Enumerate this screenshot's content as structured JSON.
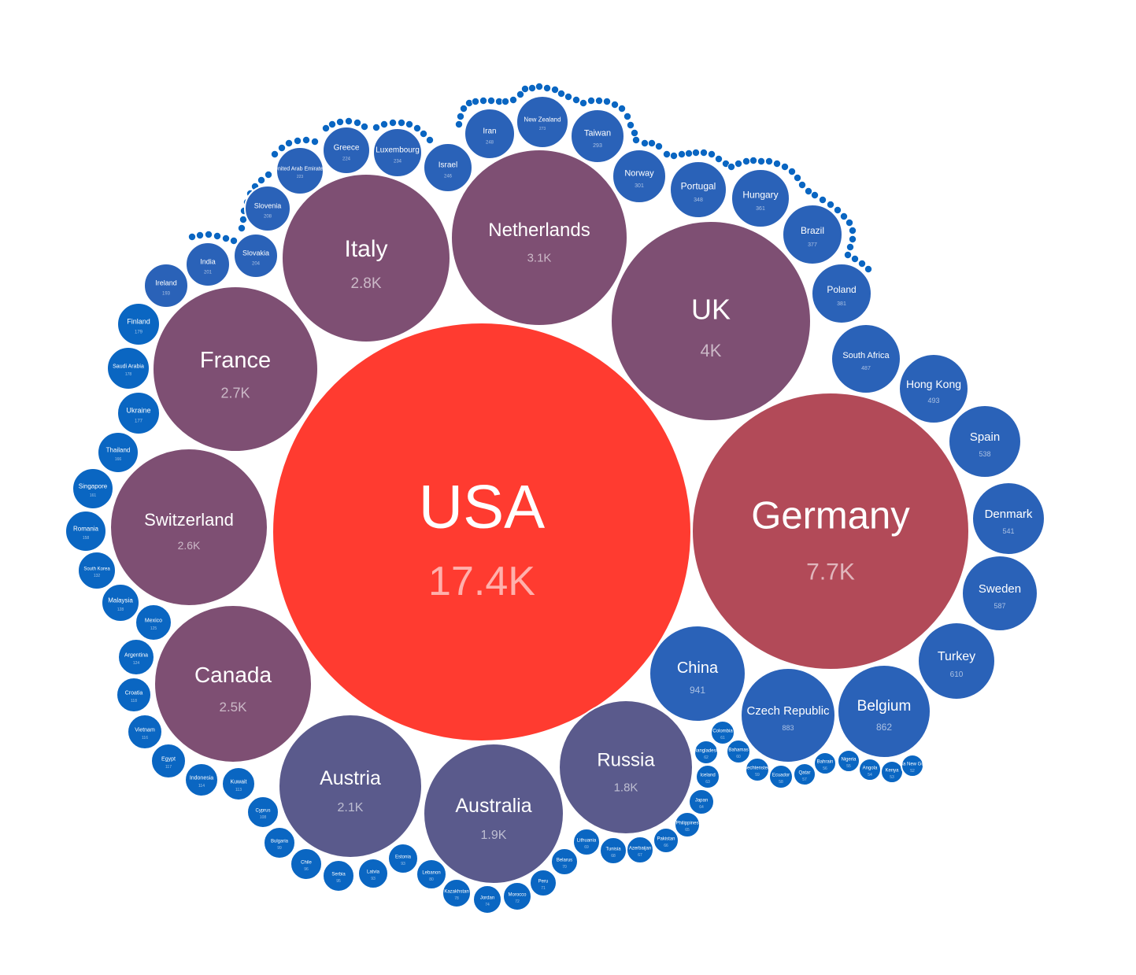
{
  "chart_data": {
    "type": "bubble",
    "title": "",
    "colors": {
      "max": "#ff3b30",
      "high": "#b24a58",
      "mid": "#7e4f73",
      "low": "#5a5a8c",
      "small": "#2a62b8",
      "tiny": "#0a66c2"
    },
    "points": [
      {
        "name": "USA",
        "value": 17400,
        "label": "17.4K"
      },
      {
        "name": "Germany",
        "value": 7700,
        "label": "7.7K"
      },
      {
        "name": "UK",
        "value": 4000,
        "label": "4K"
      },
      {
        "name": "Netherlands",
        "value": 3100,
        "label": "3.1K"
      },
      {
        "name": "Italy",
        "value": 2800,
        "label": "2.8K"
      },
      {
        "name": "France",
        "value": 2700,
        "label": "2.7K"
      },
      {
        "name": "Switzerland",
        "value": 2600,
        "label": "2.6K"
      },
      {
        "name": "Canada",
        "value": 2500,
        "label": "2.5K"
      },
      {
        "name": "Austria",
        "value": 2100,
        "label": "2.1K"
      },
      {
        "name": "Australia",
        "value": 1900,
        "label": "1.9K"
      },
      {
        "name": "Russia",
        "value": 1800,
        "label": "1.8K"
      },
      {
        "name": "China",
        "value": 941,
        "label": "941"
      },
      {
        "name": "Czech Republic",
        "value": 883,
        "label": "883"
      },
      {
        "name": "Belgium",
        "value": 862,
        "label": "862"
      },
      {
        "name": "Turkey",
        "value": 610,
        "label": "610"
      },
      {
        "name": "Sweden",
        "value": 587,
        "label": "587"
      },
      {
        "name": "Denmark",
        "value": 541,
        "label": "541"
      },
      {
        "name": "Spain",
        "value": 538,
        "label": "538"
      },
      {
        "name": "Hong Kong",
        "value": 493,
        "label": "493"
      },
      {
        "name": "South Africa",
        "value": 487,
        "label": "487"
      },
      {
        "name": "Poland",
        "value": 381,
        "label": "381"
      },
      {
        "name": "Brazil",
        "value": 377,
        "label": "377"
      },
      {
        "name": "Hungary",
        "value": 361,
        "label": "361"
      },
      {
        "name": "Portugal",
        "value": 348,
        "label": "348"
      },
      {
        "name": "Norway",
        "value": 301,
        "label": "301"
      },
      {
        "name": "Taiwan",
        "value": 293,
        "label": "293"
      },
      {
        "name": "New Zealand",
        "value": 273,
        "label": "273"
      },
      {
        "name": "Iran",
        "value": 248,
        "label": "248"
      },
      {
        "name": "Israel",
        "value": 246,
        "label": "246"
      },
      {
        "name": "Luxembourg",
        "value": 234,
        "label": "234"
      },
      {
        "name": "Greece",
        "value": 224,
        "label": "224"
      },
      {
        "name": "United Arab Emirates",
        "value": 223,
        "label": "223"
      },
      {
        "name": "Slovenia",
        "value": 208,
        "label": "208"
      },
      {
        "name": "Slovakia",
        "value": 204,
        "label": "204"
      },
      {
        "name": "India",
        "value": 201,
        "label": "201"
      },
      {
        "name": "Ireland",
        "value": 193,
        "label": "193"
      },
      {
        "name": "Finland",
        "value": 179,
        "label": "179"
      },
      {
        "name": "Saudi Arabia",
        "value": 178,
        "label": "178"
      },
      {
        "name": "Ukraine",
        "value": 177,
        "label": "177"
      },
      {
        "name": "Thailand",
        "value": 166,
        "label": "166"
      },
      {
        "name": "Singapore",
        "value": 161,
        "label": "161"
      },
      {
        "name": "Romania",
        "value": 158,
        "label": "158"
      },
      {
        "name": "South Korea",
        "value": 132,
        "label": "132"
      },
      {
        "name": "Malaysia",
        "value": 128,
        "label": "128"
      },
      {
        "name": "Mexico",
        "value": 125,
        "label": "125"
      },
      {
        "name": "Argentina",
        "value": 124,
        "label": "124"
      },
      {
        "name": "Croatia",
        "value": 118,
        "label": "118"
      },
      {
        "name": "Vietnam",
        "value": 116,
        "label": "116"
      },
      {
        "name": "Egypt",
        "value": 117,
        "label": "117"
      },
      {
        "name": "Indonesia",
        "value": 114,
        "label": "114"
      },
      {
        "name": "Kuwait",
        "value": 113,
        "label": "113"
      },
      {
        "name": "Cyprus",
        "value": 108,
        "label": "108"
      },
      {
        "name": "Bulgaria",
        "value": 99,
        "label": "99"
      },
      {
        "name": "Chile",
        "value": 96,
        "label": "96"
      },
      {
        "name": "Serbia",
        "value": 95,
        "label": "95"
      },
      {
        "name": "Latvia",
        "value": 93,
        "label": "93"
      },
      {
        "name": "Estonia",
        "value": 93,
        "label": "93"
      },
      {
        "name": "Lebanon",
        "value": 80,
        "label": "80"
      },
      {
        "name": "Kazakhstan",
        "value": 78,
        "label": "78"
      },
      {
        "name": "Jordan",
        "value": 74,
        "label": "74"
      },
      {
        "name": "Morocco",
        "value": 72,
        "label": "72"
      },
      {
        "name": "Peru",
        "value": 71,
        "label": "71"
      },
      {
        "name": "Belarus",
        "value": 70,
        "label": "70"
      },
      {
        "name": "Lithuania",
        "value": 69,
        "label": "69"
      },
      {
        "name": "Tunisia",
        "value": 68,
        "label": "68"
      },
      {
        "name": "Azerbaijan",
        "value": 67,
        "label": "67"
      },
      {
        "name": "Pakistan",
        "value": 66,
        "label": "66"
      },
      {
        "name": "Philippines",
        "value": 65,
        "label": "65"
      },
      {
        "name": "Japan",
        "value": 64,
        "label": "64"
      },
      {
        "name": "Iceland",
        "value": 63,
        "label": "63"
      },
      {
        "name": "Bangladesh",
        "value": 62,
        "label": "62"
      },
      {
        "name": "Colombia",
        "value": 61,
        "label": "61"
      },
      {
        "name": "Bahamas",
        "value": 60,
        "label": "60"
      },
      {
        "name": "Liechtenstein",
        "value": 59,
        "label": "59"
      },
      {
        "name": "Ecuador",
        "value": 58,
        "label": "58"
      },
      {
        "name": "Qatar",
        "value": 57,
        "label": "57"
      },
      {
        "name": "Bahrain",
        "value": 56,
        "label": "56"
      },
      {
        "name": "Nigeria",
        "value": 55,
        "label": "55"
      },
      {
        "name": "Angola",
        "value": 54,
        "label": "54"
      },
      {
        "name": "Kenya",
        "value": 53,
        "label": "53"
      },
      {
        "name": "Papua New Guinea",
        "value": 52,
        "label": "52"
      }
    ],
    "tiny_bubble_count": 100
  }
}
